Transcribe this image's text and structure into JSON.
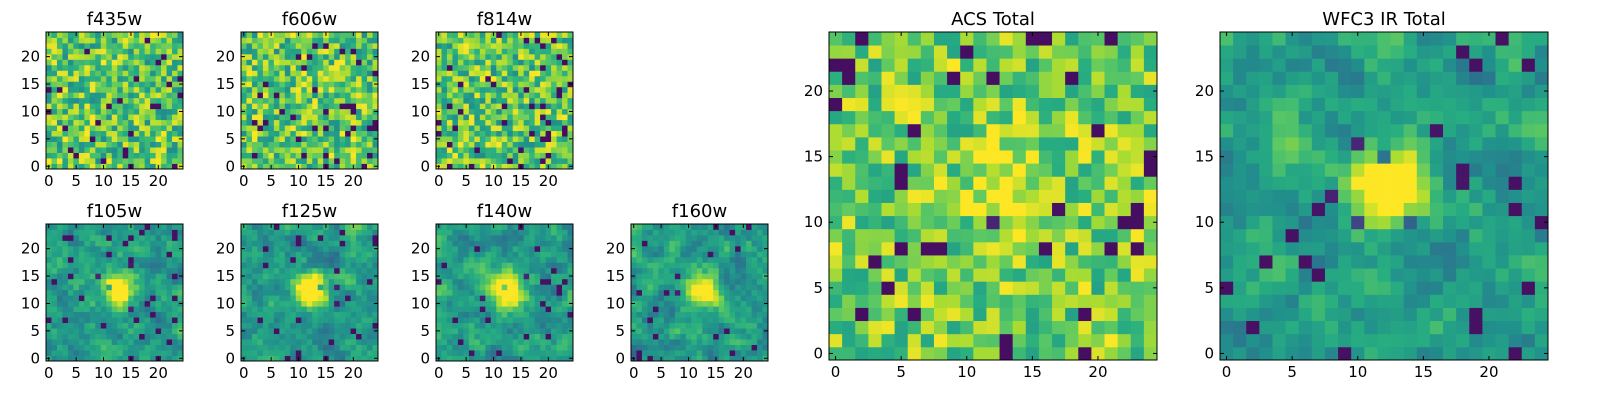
{
  "chart_data": [
    {
      "type": "heatmap",
      "title": "f435w",
      "band": "optical",
      "texture": "noisy",
      "xticks": [
        0,
        5,
        10,
        15,
        20
      ],
      "yticks": [
        0,
        5,
        10,
        15,
        20
      ],
      "xlim": [
        -0.5,
        24.5
      ],
      "ylim": [
        -0.5,
        24.5
      ],
      "grid_size": 25
    },
    {
      "type": "heatmap",
      "title": "f606w",
      "band": "optical",
      "texture": "noisy",
      "xticks": [
        0,
        5,
        10,
        15,
        20
      ],
      "yticks": [
        0,
        5,
        10,
        15,
        20
      ],
      "xlim": [
        -0.5,
        24.5
      ],
      "ylim": [
        -0.5,
        24.5
      ],
      "grid_size": 25
    },
    {
      "type": "heatmap",
      "title": "f814w",
      "band": "optical",
      "texture": "noisy",
      "xticks": [
        0,
        5,
        10,
        15,
        20
      ],
      "yticks": [
        0,
        5,
        10,
        15,
        20
      ],
      "xlim": [
        -0.5,
        24.5
      ],
      "ylim": [
        -0.5,
        24.5
      ],
      "grid_size": 25
    },
    {
      "type": "heatmap",
      "title": "f105w",
      "band": "ir",
      "texture": "source",
      "source_center": [
        12.5,
        12.5
      ],
      "xticks": [
        0,
        5,
        10,
        15,
        20
      ],
      "yticks": [
        0,
        5,
        10,
        15,
        20
      ],
      "xlim": [
        -0.5,
        24.5
      ],
      "ylim": [
        -0.5,
        24.5
      ],
      "grid_size": 25
    },
    {
      "type": "heatmap",
      "title": "f125w",
      "band": "ir",
      "texture": "source",
      "source_center": [
        12.5,
        12.5
      ],
      "xticks": [
        0,
        5,
        10,
        15,
        20
      ],
      "yticks": [
        0,
        5,
        10,
        15,
        20
      ],
      "xlim": [
        -0.5,
        24.5
      ],
      "ylim": [
        -0.5,
        24.5
      ],
      "grid_size": 25
    },
    {
      "type": "heatmap",
      "title": "f140w",
      "band": "ir",
      "texture": "source",
      "source_center": [
        12.5,
        12.5
      ],
      "xticks": [
        0,
        5,
        10,
        15,
        20
      ],
      "yticks": [
        0,
        5,
        10,
        15,
        20
      ],
      "xlim": [
        -0.5,
        24.5
      ],
      "ylim": [
        -0.5,
        24.5
      ],
      "grid_size": 25
    },
    {
      "type": "heatmap",
      "title": "f160w",
      "band": "ir",
      "texture": "source",
      "source_center": [
        12.5,
        12.5
      ],
      "xticks": [
        0,
        5,
        10,
        15,
        20
      ],
      "yticks": [
        0,
        5,
        10,
        15,
        20
      ],
      "xlim": [
        -0.5,
        24.5
      ],
      "ylim": [
        -0.5,
        24.5
      ],
      "grid_size": 25
    },
    {
      "type": "heatmap",
      "title": "ACS Total",
      "band": "optical",
      "texture": "blocky",
      "source_center": [
        12.5,
        13.0
      ],
      "xticks": [
        0,
        5,
        10,
        15,
        20
      ],
      "yticks": [
        0,
        5,
        10,
        15,
        20
      ],
      "xlim": [
        -0.5,
        24.5
      ],
      "ylim": [
        -0.5,
        24.5
      ],
      "grid_size": 25
    },
    {
      "type": "heatmap",
      "title": "WFC3 IR Total",
      "band": "ir",
      "texture": "source",
      "source_center": [
        12.5,
        12.5
      ],
      "xticks": [
        0,
        5,
        10,
        15,
        20
      ],
      "yticks": [
        0,
        5,
        10,
        15,
        20
      ],
      "xlim": [
        -0.5,
        24.5
      ],
      "ylim": [
        -0.5,
        24.5
      ],
      "grid_size": 25
    }
  ],
  "colormap": "viridis",
  "colors": {
    "viridis_dark": "#440154",
    "viridis_blue": "#3b528b",
    "viridis_teal": "#21918c",
    "viridis_green": "#5ec962",
    "viridis_yellow": "#fde725",
    "axis_color": "#000000",
    "background": "#ffffff"
  }
}
